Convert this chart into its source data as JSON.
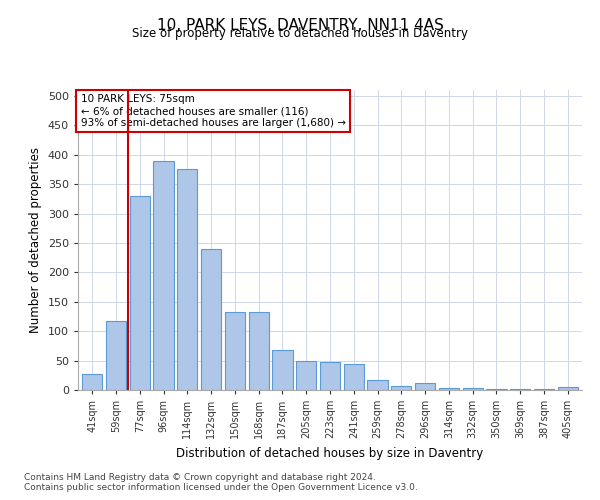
{
  "title": "10, PARK LEYS, DAVENTRY, NN11 4AS",
  "subtitle": "Size of property relative to detached houses in Daventry",
  "xlabel": "Distribution of detached houses by size in Daventry",
  "ylabel": "Number of detached properties",
  "categories": [
    "41sqm",
    "59sqm",
    "77sqm",
    "96sqm",
    "114sqm",
    "132sqm",
    "150sqm",
    "168sqm",
    "187sqm",
    "205sqm",
    "223sqm",
    "241sqm",
    "259sqm",
    "278sqm",
    "296sqm",
    "314sqm",
    "332sqm",
    "350sqm",
    "369sqm",
    "387sqm",
    "405sqm"
  ],
  "values": [
    28,
    118,
    330,
    390,
    375,
    240,
    132,
    132,
    68,
    50,
    48,
    45,
    17,
    6,
    12,
    4,
    3,
    2,
    1,
    1,
    5
  ],
  "bar_color": "#aec6e8",
  "bar_edge_color": "#5b9bd5",
  "property_label": "10 PARK LEYS: 75sqm",
  "annotation_line1": "← 6% of detached houses are smaller (116)",
  "annotation_line2": "93% of semi-detached houses are larger (1,680) →",
  "vline_color": "#cc0000",
  "vline_x_index": 1.5,
  "annotation_box_color": "#cc0000",
  "background_color": "#ffffff",
  "grid_color": "#d0d8e8",
  "ylim": [
    0,
    510
  ],
  "yticks": [
    0,
    50,
    100,
    150,
    200,
    250,
    300,
    350,
    400,
    450,
    500
  ],
  "footer_line1": "Contains HM Land Registry data © Crown copyright and database right 2024.",
  "footer_line2": "Contains public sector information licensed under the Open Government Licence v3.0."
}
